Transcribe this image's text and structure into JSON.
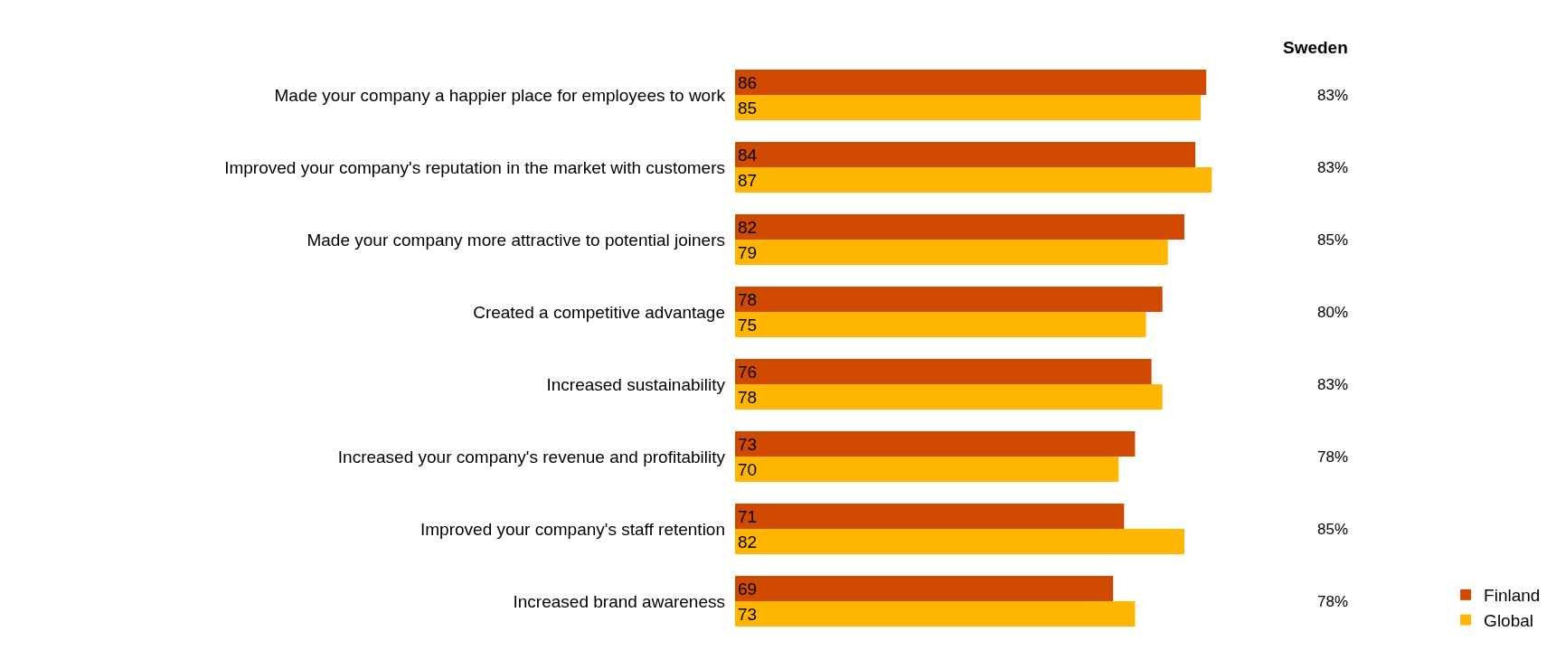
{
  "chart_data": {
    "type": "bar",
    "orientation": "horizontal",
    "categories": [
      "Made your company a happier place for employees to work",
      "Improved your company's reputation in the market with customers",
      "Made your company more attractive to potential joiners",
      "Created a competitive advantage",
      "Increased sustainability",
      "Increased your company's revenue and profitability",
      "Improved your company's staff retention",
      "Increased brand awareness"
    ],
    "series": [
      {
        "name": "Finland",
        "color": "#d04a02",
        "values": [
          86,
          84,
          82,
          78,
          76,
          73,
          71,
          69
        ]
      },
      {
        "name": "Global",
        "color": "#ffb600",
        "values": [
          85,
          87,
          79,
          75,
          78,
          70,
          82,
          73
        ]
      }
    ],
    "data_labels": true,
    "legend": "bottom right",
    "tick_labels": "y",
    "annotations": [
      "Sweden",
      "83%",
      "83%",
      "85%",
      "80%",
      "83%",
      "78%",
      "85%",
      "78%"
    ]
  }
}
